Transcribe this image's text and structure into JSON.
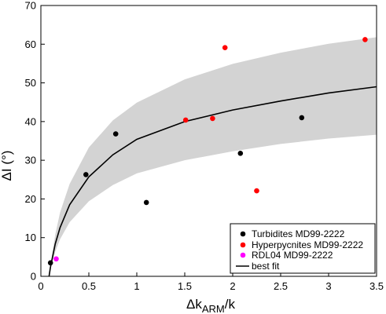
{
  "chart_data": {
    "type": "scatter",
    "xlabel_main": "Δk",
    "xlabel_sub": "ARM",
    "xlabel_tail": "/k",
    "ylabel": "ΔI (°)",
    "xlim": [
      0,
      3.5
    ],
    "ylim": [
      0,
      70
    ],
    "x_ticks": [
      "0",
      "0.5",
      "1",
      "1.5",
      "2",
      "2.5",
      "3",
      "3.5"
    ],
    "y_ticks": [
      "0",
      "10",
      "20",
      "30",
      "40",
      "50",
      "60",
      "70"
    ],
    "grid": false,
    "legend_position": "bottom-right",
    "series": [
      {
        "name": "Turbidites MD99-2222",
        "color": "#000000",
        "points": [
          [
            0.1,
            3.5
          ],
          [
            0.47,
            26.3
          ],
          [
            0.78,
            36.8
          ],
          [
            1.1,
            19.1
          ],
          [
            2.08,
            31.8
          ],
          [
            2.72,
            41.0
          ]
        ]
      },
      {
        "name": "Hyperpycnites MD99-2222",
        "color": "#ff0000",
        "points": [
          [
            1.51,
            40.4
          ],
          [
            1.79,
            40.8
          ],
          [
            1.92,
            59.1
          ],
          [
            2.25,
            22.1
          ],
          [
            3.38,
            61.2
          ]
        ]
      },
      {
        "name": "RDL04 MD99-2222",
        "color": "#ff00ff",
        "points": [
          [
            0.16,
            4.5
          ]
        ]
      }
    ],
    "fit": {
      "name": "best fit",
      "color": "#000000",
      "x_start": 0.085,
      "x_end": 3.5,
      "center": [
        [
          0.085,
          0.0
        ],
        [
          0.1,
          2.4
        ],
        [
          0.15,
          8.4
        ],
        [
          0.2,
          12.6
        ],
        [
          0.3,
          18.5
        ],
        [
          0.5,
          25.7
        ],
        [
          0.75,
          31.4
        ],
        [
          1.0,
          35.4
        ],
        [
          1.5,
          40.0
        ],
        [
          2.0,
          43.0
        ],
        [
          2.5,
          45.3
        ],
        [
          3.0,
          47.4
        ],
        [
          3.5,
          49.0
        ]
      ],
      "upper": [
        [
          0.085,
          0.0
        ],
        [
          0.1,
          3.0
        ],
        [
          0.15,
          10.8
        ],
        [
          0.2,
          16.5
        ],
        [
          0.3,
          23.9
        ],
        [
          0.5,
          33.3
        ],
        [
          0.75,
          40.3
        ],
        [
          1.0,
          44.9
        ],
        [
          1.5,
          50.9
        ],
        [
          2.0,
          54.9
        ],
        [
          2.5,
          57.8
        ],
        [
          3.0,
          60.1
        ],
        [
          3.5,
          61.8
        ]
      ],
      "lower": [
        [
          0.085,
          0.0
        ],
        [
          0.1,
          1.8
        ],
        [
          0.15,
          6.4
        ],
        [
          0.2,
          9.6
        ],
        [
          0.3,
          14.0
        ],
        [
          0.5,
          19.4
        ],
        [
          0.75,
          23.6
        ],
        [
          1.0,
          26.6
        ],
        [
          1.5,
          30.0
        ],
        [
          2.0,
          32.3
        ],
        [
          2.5,
          34.2
        ],
        [
          3.0,
          35.6
        ],
        [
          3.5,
          36.6
        ]
      ],
      "band_color": "#d3d3d3"
    }
  }
}
